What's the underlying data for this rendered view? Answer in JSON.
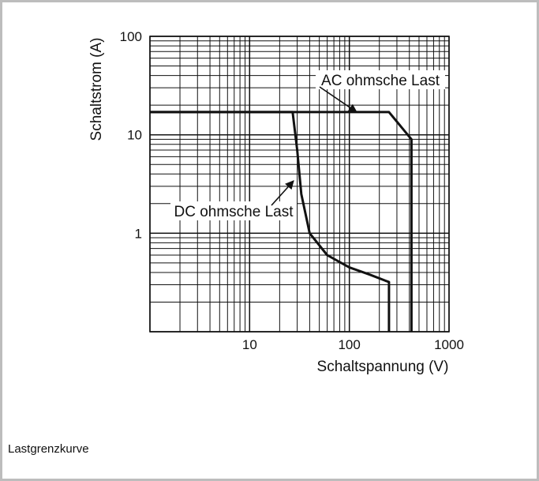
{
  "caption": "Lastgrenzkurve",
  "chart_data": {
    "type": "line",
    "xlabel": "Schaltspannung (V)",
    "ylabel": "Schaltstrom (A)",
    "xscale": "log",
    "yscale": "log",
    "xlim": [
      1,
      1000
    ],
    "ylim": [
      0.1,
      100
    ],
    "grid": true,
    "x_ticks": [
      {
        "value": 10,
        "label": "10"
      },
      {
        "value": 100,
        "label": "100"
      },
      {
        "value": 1000,
        "label": "1000"
      }
    ],
    "y_ticks": [
      {
        "value": 100,
        "label": "100"
      },
      {
        "value": 10,
        "label": "10"
      },
      {
        "value": 1,
        "label": "1"
      }
    ],
    "series": [
      {
        "name": "AC ohmsche Last",
        "points": [
          [
            1,
            17
          ],
          [
            250,
            17
          ],
          [
            420,
            9
          ],
          [
            420,
            0.1
          ]
        ]
      },
      {
        "name": "DC ohmsche Last",
        "points": [
          [
            1,
            17
          ],
          [
            27,
            17
          ],
          [
            30,
            7
          ],
          [
            33,
            2.5
          ],
          [
            40,
            1
          ],
          [
            60,
            0.6
          ],
          [
            100,
            0.45
          ],
          [
            160,
            0.38
          ],
          [
            230,
            0.33
          ],
          [
            250,
            0.32
          ],
          [
            250,
            0.1
          ]
        ]
      }
    ],
    "annotations": [
      {
        "text": "AC ohmsche Last",
        "points_to_series": "AC ohmsche Last"
      },
      {
        "text": "DC ohmsche Last",
        "points_to_series": "DC ohmsche Last"
      }
    ],
    "colors": {
      "line": "#111111",
      "grid": "#111111",
      "background": "#ffffff"
    }
  }
}
